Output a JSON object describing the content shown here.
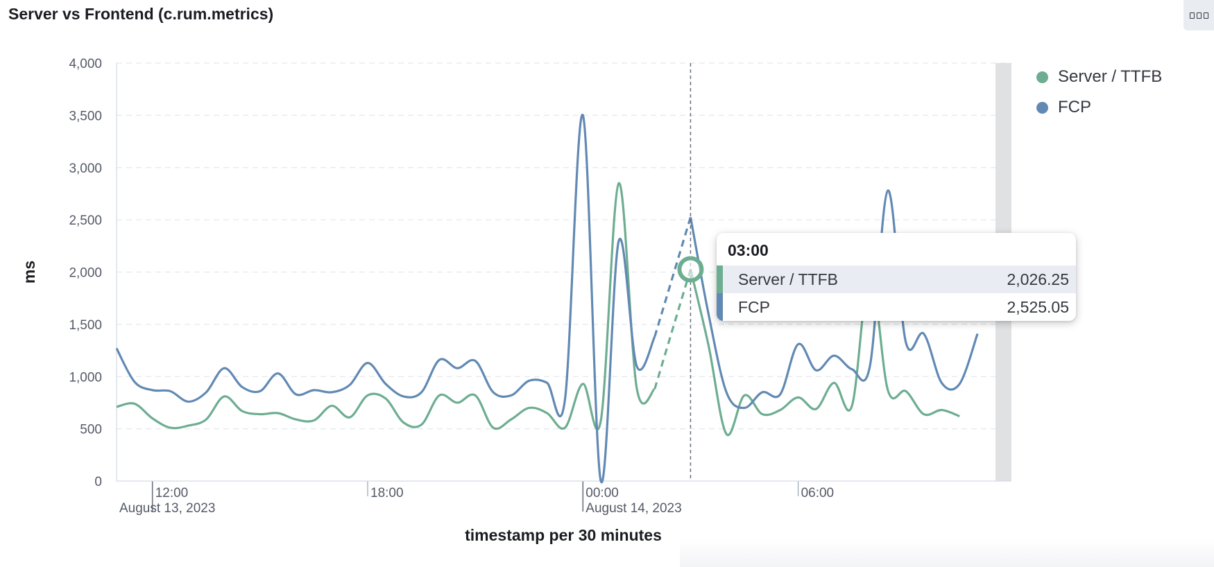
{
  "panel": {
    "title": "Server vs Frontend (c.rum.metrics)"
  },
  "colors": {
    "series_ttfb": "#6dad91",
    "series_fcp": "#6189b3",
    "grid": "#e4e8ee",
    "gutter": "#e0e1e3"
  },
  "chart_data": {
    "type": "line",
    "xlabel": "timestamp per 30 minutes",
    "ylabel": "ms",
    "ylim": [
      0,
      4000
    ],
    "yticks": [
      0,
      500,
      1000,
      1500,
      2000,
      2500,
      3000,
      3500,
      4000
    ],
    "ytick_labels": [
      "0",
      "500",
      "1,000",
      "1,500",
      "2,000",
      "2,500",
      "3,000",
      "3,500",
      "4,000"
    ],
    "x_range": [
      "2023-08-13 11:00",
      "2023-08-14 11:30"
    ],
    "xtick_labels": [
      {
        "time": "2023-08-13 12:00",
        "label": "12:00",
        "sublabel": "August 13, 2023"
      },
      {
        "time": "2023-08-13 18:00",
        "label": "18:00",
        "sublabel": ""
      },
      {
        "time": "2023-08-14 00:00",
        "label": "00:00",
        "sublabel": "August 14, 2023"
      },
      {
        "time": "2023-08-14 06:00",
        "label": "06:00",
        "sublabel": ""
      }
    ],
    "x": [
      "2023-08-13 11:00",
      "2023-08-13 11:30",
      "2023-08-13 12:00",
      "2023-08-13 12:30",
      "2023-08-13 13:00",
      "2023-08-13 13:30",
      "2023-08-13 14:00",
      "2023-08-13 14:30",
      "2023-08-13 15:00",
      "2023-08-13 15:30",
      "2023-08-13 16:00",
      "2023-08-13 16:30",
      "2023-08-13 17:00",
      "2023-08-13 17:30",
      "2023-08-13 18:00",
      "2023-08-13 18:30",
      "2023-08-13 19:00",
      "2023-08-13 19:30",
      "2023-08-13 20:00",
      "2023-08-13 20:30",
      "2023-08-13 21:00",
      "2023-08-13 21:30",
      "2023-08-13 22:00",
      "2023-08-13 22:30",
      "2023-08-13 23:00",
      "2023-08-13 23:30",
      "2023-08-14 00:00",
      "2023-08-14 00:30",
      "2023-08-14 01:00",
      "2023-08-14 01:30",
      "2023-08-14 02:00",
      "2023-08-14 02:30",
      "2023-08-14 03:00",
      "2023-08-14 03:30",
      "2023-08-14 04:00",
      "2023-08-14 04:30",
      "2023-08-14 05:00",
      "2023-08-14 05:30",
      "2023-08-14 06:00",
      "2023-08-14 06:30",
      "2023-08-14 07:00",
      "2023-08-14 07:30",
      "2023-08-14 08:00",
      "2023-08-14 08:30",
      "2023-08-14 09:00",
      "2023-08-14 09:30",
      "2023-08-14 10:00",
      "2023-08-14 10:30",
      "2023-08-14 11:00",
      "2023-08-14 11:30"
    ],
    "series": [
      {
        "name": "Server / TTFB",
        "values": [
          710,
          740,
          600,
          510,
          530,
          590,
          810,
          670,
          640,
          650,
          590,
          580,
          720,
          610,
          820,
          790,
          560,
          540,
          820,
          750,
          820,
          510,
          590,
          700,
          650,
          510,
          930,
          580,
          2850,
          890,
          880,
          null,
          2026.25,
          1300,
          450,
          820,
          640,
          680,
          800,
          690,
          940,
          720,
          2000,
          870,
          860,
          640,
          680,
          620,
          null,
          null
        ]
      },
      {
        "name": "FCP",
        "values": [
          1270,
          950,
          870,
          860,
          760,
          850,
          1080,
          900,
          860,
          1030,
          830,
          870,
          850,
          920,
          1130,
          930,
          810,
          850,
          1160,
          1080,
          1150,
          850,
          820,
          960,
          940,
          780,
          3500,
          0,
          2300,
          1100,
          1380,
          null,
          2525.05,
          1600,
          850,
          700,
          850,
          830,
          1310,
          1060,
          1200,
          1070,
          1100,
          2780,
          1330,
          1410,
          940,
          930,
          1410,
          null
        ]
      }
    ],
    "gaps_dashed": [
      {
        "from_index": 30,
        "to_index": 32
      }
    ],
    "crosshair_x": "2023-08-14 03:00",
    "legend": "top-right",
    "grid": true
  },
  "legend": {
    "items": [
      {
        "label": "Server / TTFB",
        "color": "#6dad91"
      },
      {
        "label": "FCP",
        "color": "#6189b3"
      }
    ]
  },
  "tooltip": {
    "header": "03:00",
    "rows": [
      {
        "label": "Server / TTFB",
        "value": "2,026.25",
        "color": "#6dad91"
      },
      {
        "label": "FCP",
        "value": "2,525.05",
        "color": "#6189b3"
      }
    ]
  }
}
